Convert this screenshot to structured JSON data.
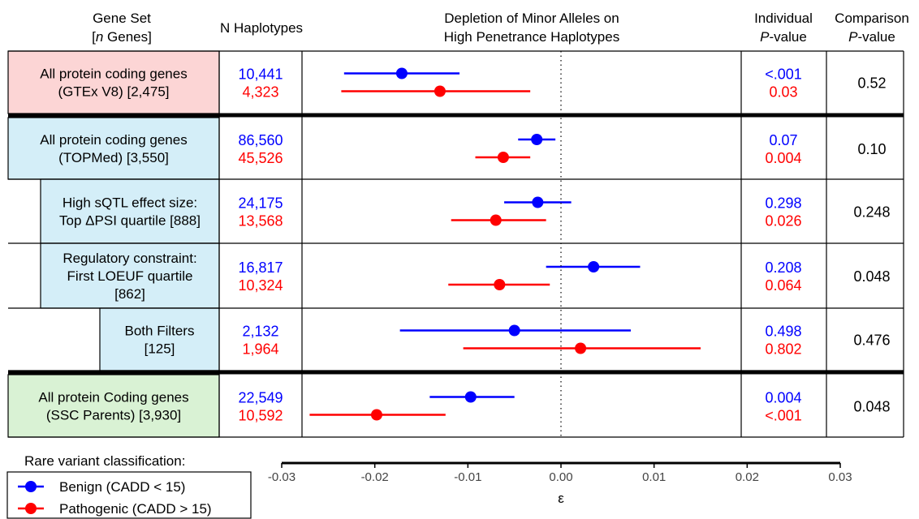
{
  "headers": {
    "gene_set_line1": "Gene Set",
    "gene_set_line2_n": "n",
    "gene_set_line2_rest": " Genes]",
    "gene_set_line2_open": "[",
    "n_haplotypes": "N Haplotypes",
    "depletion_line1": "Depletion of Minor Alleles on",
    "depletion_line2": "High Penetrance Haplotypes",
    "individual_line1": "Individual",
    "individual_p": "P",
    "individual_suffix": "-value",
    "comparison_line1": "Comparison",
    "comparison_p": "P",
    "comparison_suffix": "-value"
  },
  "colors": {
    "benign": "#0000ff",
    "pathogenic": "#ff0000",
    "gtex_bg": "#fcd5d5",
    "topmed_bg": "#d4eef8",
    "ssc_bg": "#d9f2d4"
  },
  "chart_data": {
    "type": "forest",
    "xlabel": "ε",
    "xlim": [
      -0.03,
      0.03
    ],
    "xticks": [
      -0.03,
      -0.02,
      -0.01,
      0.0,
      0.01,
      0.02,
      0.03
    ],
    "xtick_labels": [
      "-0.03",
      "-0.02",
      "-0.01",
      "0.00",
      "0.01",
      "0.02",
      "0.03"
    ],
    "reference_line": 0,
    "series": [
      {
        "name": "Benign (CADD < 15)",
        "color": "#0000ff"
      },
      {
        "name": "Pathogenic (CADD > 15)",
        "color": "#ff0000"
      }
    ],
    "rows": [
      {
        "label_lines": [
          "All protein coding genes",
          "(GTEx V8) [2,475]"
        ],
        "group": "gtex",
        "benign": {
          "n": "10,441",
          "est": -0.0171,
          "lo": -0.0233,
          "hi": -0.0109,
          "p": "<.001"
        },
        "pathogenic": {
          "n": "4,323",
          "est": -0.013,
          "lo": -0.0236,
          "hi": -0.0033,
          "p": "0.03"
        },
        "comparison_p": "0.52"
      },
      {
        "label_lines": [
          "All protein coding genes",
          "(TOPMed) [3,550]"
        ],
        "group": "topmed",
        "benign": {
          "n": "86,560",
          "est": -0.0026,
          "lo": -0.0046,
          "hi": -0.0006,
          "p": "0.07"
        },
        "pathogenic": {
          "n": "45,526",
          "est": -0.0062,
          "lo": -0.0092,
          "hi": -0.0033,
          "p": "0.004"
        },
        "comparison_p": "0.10"
      },
      {
        "label_lines": [
          "High sQTL effect size:",
          "Top ΔPSI quartile [888]"
        ],
        "group": "topmed",
        "indent": 1,
        "benign": {
          "n": "24,175",
          "est": -0.0025,
          "lo": -0.0061,
          "hi": 0.0011,
          "p": "0.298"
        },
        "pathogenic": {
          "n": "13,568",
          "est": -0.007,
          "lo": -0.0118,
          "hi": -0.0016,
          "p": "0.026"
        },
        "comparison_p": "0.248"
      },
      {
        "label_lines": [
          "Regulatory constraint:",
          "First LOEUF quartile",
          "[862]"
        ],
        "group": "topmed",
        "indent": 1,
        "benign": {
          "n": "16,817",
          "est": 0.0035,
          "lo": -0.0016,
          "hi": 0.0085,
          "p": "0.208"
        },
        "pathogenic": {
          "n": "10,324",
          "est": -0.0066,
          "lo": -0.0121,
          "hi": -0.0012,
          "p": "0.064"
        },
        "comparison_p": "0.048"
      },
      {
        "label_lines": [
          "Both Filters",
          "[125]"
        ],
        "group": "topmed",
        "indent": 2,
        "benign": {
          "n": "2,132",
          "est": -0.005,
          "lo": -0.0173,
          "hi": 0.0075,
          "p": "0.498"
        },
        "pathogenic": {
          "n": "1,964",
          "est": 0.0021,
          "lo": -0.0105,
          "hi": 0.015,
          "p": "0.802"
        },
        "comparison_p": "0.476"
      },
      {
        "label_lines": [
          "All protein Coding genes",
          "(SSC Parents) [3,930]"
        ],
        "group": "ssc",
        "benign": {
          "n": "22,549",
          "est": -0.0097,
          "lo": -0.0141,
          "hi": -0.005,
          "p": "0.004"
        },
        "pathogenic": {
          "n": "10,592",
          "est": -0.0198,
          "lo": -0.027,
          "hi": -0.0124,
          "p": "<.001"
        },
        "comparison_p": "0.048"
      }
    ]
  },
  "legend": {
    "title": "Rare variant classification:",
    "items": [
      "Benign (CADD < 15)",
      "Pathogenic (CADD > 15)"
    ]
  }
}
